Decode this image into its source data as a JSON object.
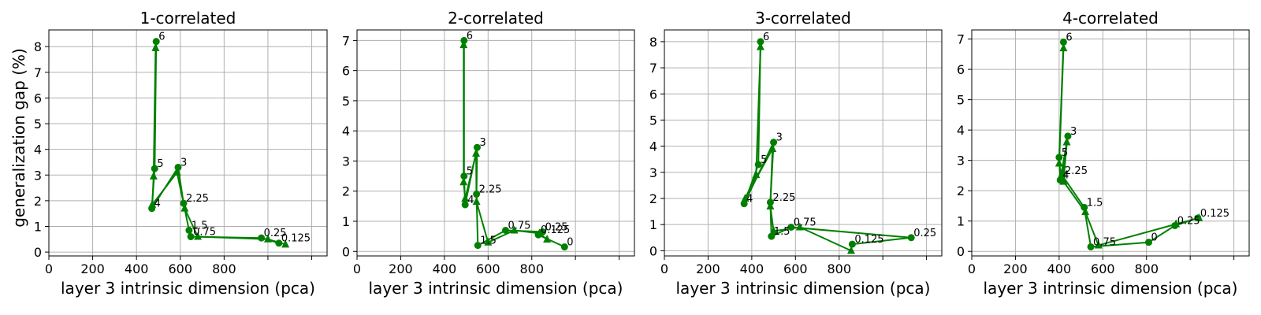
{
  "figure": {
    "ylabel": "generalization gap (%)"
  },
  "chart_data": [
    {
      "type": "line",
      "title": "1-correlated",
      "xlabel": "layer 3 intrinsic dimension (pca)",
      "ylabel": "generalization gap (%)",
      "xlim": [
        0,
        1270
      ],
      "ylim": [
        -0.15,
        8.65
      ],
      "xticks": [
        0,
        200,
        400,
        600,
        800
      ],
      "xgrid": [
        0,
        200,
        400,
        600,
        800,
        1000,
        1200
      ],
      "yticks": [
        0,
        1,
        2,
        3,
        4,
        5,
        6,
        7,
        8
      ],
      "grid": true,
      "color": "#008000",
      "series": [
        {
          "marker": "circle",
          "points": [
            {
              "label": "6",
              "x": 490,
              "y": 8.2
            },
            {
              "label": "5",
              "x": 483,
              "y": 3.25
            },
            {
              "label": "4",
              "x": 470,
              "y": 1.7
            },
            {
              "label": "3",
              "x": 590,
              "y": 3.3
            },
            {
              "label": "2.25",
              "x": 615,
              "y": 1.9
            },
            {
              "label": "1.5",
              "x": 640,
              "y": 0.85
            },
            {
              "label": "0.75",
              "x": 648,
              "y": 0.6
            },
            {
              "label": "0.25",
              "x": 970,
              "y": 0.55
            },
            {
              "label": "0.125",
              "x": 1050,
              "y": 0.35
            }
          ]
        },
        {
          "marker": "triangle",
          "points": [
            {
              "x": 487,
              "y": 7.95
            },
            {
              "x": 478,
              "y": 2.95
            },
            {
              "x": 472,
              "y": 1.85
            },
            {
              "x": 585,
              "y": 3.1
            },
            {
              "x": 620,
              "y": 1.7
            },
            {
              "x": 680,
              "y": 0.6
            },
            {
              "x": 1000,
              "y": 0.5
            },
            {
              "x": 1080,
              "y": 0.3
            }
          ]
        }
      ]
    },
    {
      "type": "line",
      "title": "2-correlated",
      "xlabel": "layer 3 intrinsic dimension (pca)",
      "ylabel": "",
      "xlim": [
        0,
        1270
      ],
      "ylim": [
        -0.15,
        7.35
      ],
      "xticks": [
        0,
        200,
        400,
        600,
        800
      ],
      "xgrid": [
        0,
        200,
        400,
        600,
        800,
        1000,
        1200
      ],
      "yticks": [
        0,
        1,
        2,
        3,
        4,
        5,
        6,
        7
      ],
      "grid": true,
      "color": "#008000",
      "series": [
        {
          "marker": "circle",
          "points": [
            {
              "label": "6",
              "x": 490,
              "y": 7.0
            },
            {
              "label": "5",
              "x": 490,
              "y": 2.5
            },
            {
              "label": "4",
              "x": 495,
              "y": 1.55
            },
            {
              "label": "3",
              "x": 550,
              "y": 3.45
            },
            {
              "label": "2.25",
              "x": 547,
              "y": 1.9
            },
            {
              "label": "1.5",
              "x": 553,
              "y": 0.2
            },
            {
              "label": "0.75",
              "x": 680,
              "y": 0.7
            },
            {
              "label": "0.25",
              "x": 850,
              "y": 0.65
            },
            {
              "label": "0.125",
              "x": 830,
              "y": 0.55
            },
            {
              "label": "0",
              "x": 950,
              "y": 0.15
            }
          ]
        },
        {
          "marker": "triangle",
          "points": [
            {
              "x": 488,
              "y": 6.85
            },
            {
              "x": 488,
              "y": 2.3
            },
            {
              "x": 495,
              "y": 1.75
            },
            {
              "x": 545,
              "y": 3.25
            },
            {
              "x": 547,
              "y": 1.65
            },
            {
              "x": 600,
              "y": 0.3
            },
            {
              "x": 720,
              "y": 0.7
            },
            {
              "x": 835,
              "y": 0.6
            },
            {
              "x": 870,
              "y": 0.4
            }
          ]
        }
      ]
    },
    {
      "type": "line",
      "title": "3-correlated",
      "xlabel": "layer 3 intrinsic dimension (pca)",
      "ylabel": "",
      "xlim": [
        0,
        1270
      ],
      "ylim": [
        -0.2,
        8.45
      ],
      "xticks": [
        0,
        200,
        400,
        600,
        800
      ],
      "xgrid": [
        0,
        200,
        400,
        600,
        800,
        1000,
        1200
      ],
      "yticks": [
        0,
        1,
        2,
        3,
        4,
        5,
        6,
        7,
        8
      ],
      "grid": true,
      "color": "#008000",
      "series": [
        {
          "marker": "circle",
          "points": [
            {
              "label": "6",
              "x": 440,
              "y": 8.0
            },
            {
              "label": "5",
              "x": 430,
              "y": 3.3
            },
            {
              "label": "4",
              "x": 365,
              "y": 1.8
            },
            {
              "label": "3",
              "x": 500,
              "y": 4.15
            },
            {
              "label": "2.25",
              "x": 485,
              "y": 1.85
            },
            {
              "label": "1.5",
              "x": 490,
              "y": 0.55
            },
            {
              "label": "0.75",
              "x": 580,
              "y": 0.9
            },
            {
              "label": "0.25",
              "x": 1130,
              "y": 0.5
            },
            {
              "label": "0.125",
              "x": 860,
              "y": 0.25
            }
          ]
        },
        {
          "marker": "triangle",
          "points": [
            {
              "x": 440,
              "y": 7.8
            },
            {
              "x": 420,
              "y": 2.9
            },
            {
              "x": 370,
              "y": 2.0
            },
            {
              "x": 495,
              "y": 3.9
            },
            {
              "x": 485,
              "y": 1.7
            },
            {
              "x": 500,
              "y": 0.75
            },
            {
              "x": 620,
              "y": 0.9
            },
            {
              "x": 855,
              "y": 0.0
            }
          ]
        }
      ]
    },
    {
      "type": "line",
      "title": "4-correlated",
      "xlabel": "layer 3 intrinsic dimension (pca)",
      "ylabel": "",
      "xlim": [
        0,
        1270
      ],
      "ylim": [
        -0.15,
        7.3
      ],
      "xticks": [
        0,
        200,
        400,
        600,
        800
      ],
      "xgrid": [
        0,
        200,
        400,
        600,
        800,
        1000,
        1200
      ],
      "yticks": [
        0,
        1,
        2,
        3,
        4,
        5,
        6,
        7
      ],
      "grid": true,
      "color": "#008000",
      "series": [
        {
          "marker": "circle",
          "points": [
            {
              "label": "6",
              "x": 420,
              "y": 6.9
            },
            {
              "label": "5",
              "x": 400,
              "y": 3.1
            },
            {
              "label": "4",
              "x": 405,
              "y": 2.35
            },
            {
              "label": "3",
              "x": 440,
              "y": 3.8
            },
            {
              "label": "2.25",
              "x": 415,
              "y": 2.5
            },
            {
              "label": "1.5",
              "x": 515,
              "y": 1.45
            },
            {
              "label": "0.75",
              "x": 545,
              "y": 0.15
            },
            {
              "label": "0",
              "x": 810,
              "y": 0.3
            },
            {
              "label": "0.25",
              "x": 930,
              "y": 0.85
            },
            {
              "label": "0.125",
              "x": 1035,
              "y": 1.1
            }
          ]
        },
        {
          "marker": "triangle",
          "points": [
            {
              "x": 420,
              "y": 6.7
            },
            {
              "x": 400,
              "y": 2.9
            },
            {
              "x": 410,
              "y": 2.5
            },
            {
              "x": 435,
              "y": 3.6
            },
            {
              "x": 420,
              "y": 2.3
            },
            {
              "x": 520,
              "y": 1.3
            },
            {
              "x": 580,
              "y": 0.2
            },
            {
              "x": 935,
              "y": 0.9
            },
            {
              "x": 1040,
              "y": 1.1
            }
          ]
        }
      ]
    }
  ]
}
